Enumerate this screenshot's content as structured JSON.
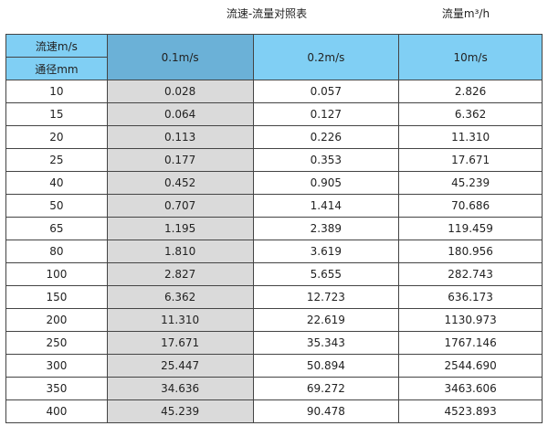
{
  "title": "流速-流量对照表",
  "unit": "流量m³/h",
  "header": {
    "velocity_label": "流速m/s",
    "diameter_label": "通径mm",
    "columns": [
      "0.1m/s",
      "0.2m/s",
      "10m/s"
    ]
  },
  "colors": {
    "header": "#80cff4",
    "header_selected": "#6bb1d7",
    "highlight_column": "#dadada"
  },
  "rows": [
    [
      "10",
      "0.028",
      "0.057",
      "2.826"
    ],
    [
      "15",
      "0.064",
      "0.127",
      "6.362"
    ],
    [
      "20",
      "0.113",
      "0.226",
      "11.310"
    ],
    [
      "25",
      "0.177",
      "0.353",
      "17.671"
    ],
    [
      "40",
      "0.452",
      "0.905",
      "45.239"
    ],
    [
      "50",
      "0.707",
      "1.414",
      "70.686"
    ],
    [
      "65",
      "1.195",
      "2.389",
      "119.459"
    ],
    [
      "80",
      "1.810",
      "3.619",
      "180.956"
    ],
    [
      "100",
      "2.827",
      "5.655",
      "282.743"
    ],
    [
      "150",
      "6.362",
      "12.723",
      "636.173"
    ],
    [
      "200",
      "11.310",
      "22.619",
      "1130.973"
    ],
    [
      "250",
      "17.671",
      "35.343",
      "1767.146"
    ],
    [
      "300",
      "25.447",
      "50.894",
      "2544.690"
    ],
    [
      "350",
      "34.636",
      "69.272",
      "3463.606"
    ],
    [
      "400",
      "45.239",
      "90.478",
      "4523.893"
    ]
  ]
}
